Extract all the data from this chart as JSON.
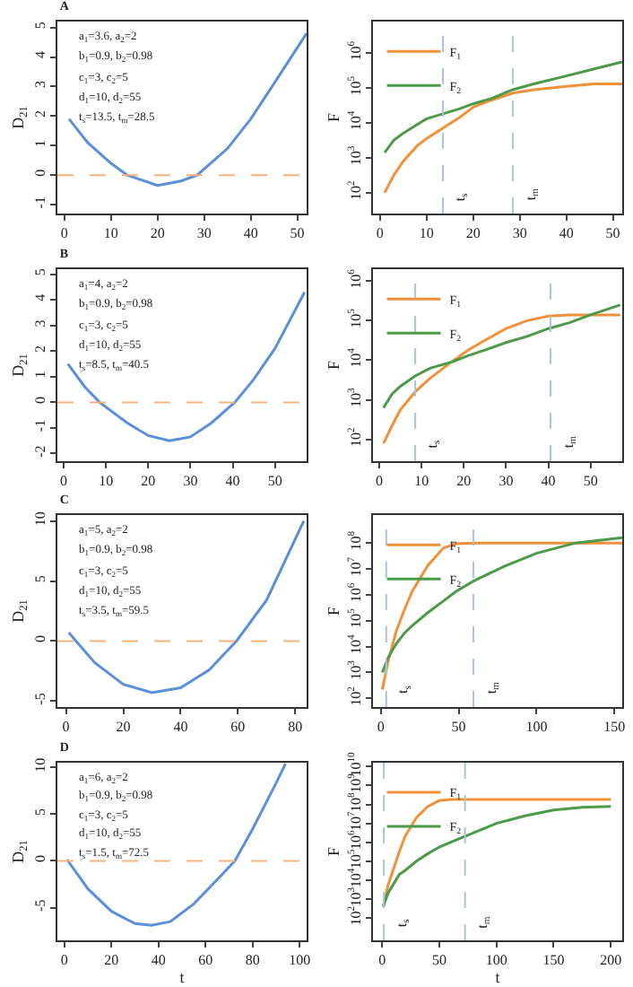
{
  "chart_data": [
    {
      "type": "line",
      "title": "A",
      "ylabel": "D$_{21}$",
      "annotations": [
        "a$_{1}$=3.6, a$_{2}$=2",
        "b$_{1}$=0.9, b$_{2}$=0.98",
        "c$_{1}$=3, c$_{2}$=5",
        "d$_{1}$=10, d$_{2}$=55",
        "t$_{s}$=13.5, t$_{m}$=28.5"
      ],
      "x": [
        1,
        5,
        10,
        13.5,
        20,
        25,
        28.5,
        35,
        40,
        45,
        52
      ],
      "series": [
        {
          "color": "#5b8fd9",
          "values": [
            1.9,
            1.1,
            0.4,
            0,
            -0.35,
            -0.2,
            0,
            0.9,
            1.9,
            3.1,
            4.8
          ]
        }
      ],
      "xlim": [
        -1.5,
        52
      ],
      "xticks": [
        0,
        10,
        20,
        30,
        40,
        50
      ],
      "ylim": [
        -1.3,
        5.2
      ],
      "yticks": [
        -1,
        0,
        1,
        2,
        3,
        4,
        5
      ],
      "ref_lines": [
        {
          "axis": "y",
          "value": 0,
          "color": "#f5b27a",
          "line_style": "dashed"
        }
      ],
      "grid": false,
      "legend": false,
      "marker": "none"
    },
    {
      "type": "line",
      "ylabel": "F",
      "log": "y",
      "legend": "top left",
      "marker": "none",
      "grid": false,
      "x": [
        1,
        3,
        5,
        8,
        10,
        13.5,
        17,
        20,
        24,
        28.5,
        33,
        40,
        46,
        52
      ],
      "series": [
        {
          "name": "F$_{1}$",
          "color": "#f0913a",
          "values": [
            100,
            320,
            790,
            2200,
            3500,
            7100,
            14000,
            28000,
            45000,
            71000,
            89000,
            110000,
            130000,
            130000
          ]
        },
        {
          "name": "F$_{2}$",
          "color": "#4a9a47",
          "values": [
            1400,
            3200,
            5000,
            8900,
            13000,
            18000,
            25000,
            35000,
            50000,
            89000,
            130000,
            220000,
            350000,
            560000
          ]
        }
      ],
      "xlim": [
        -1.5,
        52
      ],
      "xticks": [
        0,
        10,
        20,
        30,
        40,
        50
      ],
      "ylim": [
        25,
        8000000
      ],
      "yticks": [
        {
          "value": 100,
          "label": "10$^{2}$"
        },
        {
          "value": 1000,
          "label": "10$^{3}$"
        },
        {
          "value": 10000,
          "label": "10$^{4}$"
        },
        {
          "value": 100000,
          "label": "10$^{5}$"
        },
        {
          "value": 1000000,
          "label": "10$^{6}$"
        }
      ],
      "ref_lines": [
        {
          "axis": "x",
          "value": 13.5,
          "label": "t$_{s}$",
          "color": "#a9c4d8",
          "line_style": "dashed"
        },
        {
          "axis": "x",
          "value": 28.5,
          "label": "t$_{m}$",
          "color": "#a9c4d8",
          "line_style": "dashed"
        }
      ]
    },
    {
      "type": "line",
      "title": "B",
      "ylabel": "D$_{21}$",
      "annotations": [
        "a$_{1}$=4, a$_{2}$=2",
        "b$_{1}$=0.9, b$_{2}$=0.98",
        "c$_{1}$=3, c$_{2}$=5",
        "d$_{1}$=10, d$_{2}$=55",
        "t$_{s}$=8.5, t$_{m}$=40.5"
      ],
      "x": [
        1,
        5,
        8.5,
        15,
        20,
        25,
        30,
        35,
        40.5,
        45,
        50,
        57
      ],
      "series": [
        {
          "color": "#5b8fd9",
          "values": [
            1.5,
            0.6,
            0,
            -0.8,
            -1.3,
            -1.5,
            -1.35,
            -0.8,
            0,
            0.9,
            2.1,
            4.3
          ]
        }
      ],
      "xlim": [
        -1.5,
        57.5
      ],
      "xticks": [
        0,
        10,
        20,
        30,
        40,
        50
      ],
      "ylim": [
        -2.3,
        5.2
      ],
      "yticks": [
        -2,
        -1,
        0,
        1,
        2,
        3,
        4,
        5
      ],
      "ref_lines": [
        {
          "axis": "y",
          "value": 0,
          "color": "#f5b27a",
          "line_style": "dashed"
        }
      ],
      "grid": false,
      "legend": false,
      "marker": "none"
    },
    {
      "type": "line",
      "ylabel": "F",
      "log": "y",
      "legend": "top left",
      "marker": "none",
      "grid": false,
      "x": [
        1,
        3,
        5,
        8.5,
        12,
        17,
        21,
        25,
        30,
        35,
        40,
        45,
        50,
        57
      ],
      "series": [
        {
          "name": "F$_{1}$",
          "color": "#f0913a",
          "values": [
            79,
            220,
            560,
            1600,
            3500,
            8900,
            18000,
            32000,
            63000,
            100000,
            130000,
            140000,
            140000,
            140000
          ]
        },
        {
          "name": "F$_{2}$",
          "color": "#4a9a47",
          "values": [
            630,
            1400,
            2200,
            4000,
            6300,
            8900,
            13000,
            18000,
            28000,
            40000,
            63000,
            89000,
            140000,
            250000
          ]
        }
      ],
      "xlim": [
        -1.5,
        57.5
      ],
      "xticks": [
        0,
        10,
        20,
        30,
        40,
        50
      ],
      "ylim": [
        28,
        2000000
      ],
      "yticks": [
        {
          "value": 100,
          "label": "10$^{2}$"
        },
        {
          "value": 1000,
          "label": "10$^{3}$"
        },
        {
          "value": 10000,
          "label": "10$^{4}$"
        },
        {
          "value": 100000,
          "label": "10$^{5}$"
        },
        {
          "value": 1000000,
          "label": "10$^{6}$"
        }
      ],
      "ref_lines": [
        {
          "axis": "x",
          "value": 8.5,
          "label": "t$_{s}$",
          "color": "#a9c4d8",
          "line_style": "dashed"
        },
        {
          "axis": "x",
          "value": 40.5,
          "label": "t$_{m}$",
          "color": "#a9c4d8",
          "line_style": "dashed"
        }
      ]
    },
    {
      "type": "line",
      "title": "C",
      "ylabel": "D$_{21}$",
      "annotations": [
        "a$_{1}$=5, a$_{2}$=2",
        "b$_{1}$=0.9, b$_{2}$=0.98",
        "c$_{1}$=3, c$_{2}$=5",
        "d$_{1}$=10, d$_{2}$=55",
        "t$_{s}$=3.5, t$_{m}$=59.5"
      ],
      "x": [
        1,
        3.5,
        10,
        20,
        30,
        40,
        50,
        59.5,
        70,
        83
      ],
      "series": [
        {
          "color": "#5b8fd9",
          "values": [
            0.7,
            0,
            -1.8,
            -3.6,
            -4.3,
            -3.9,
            -2.4,
            0,
            3.4,
            10
          ]
        }
      ],
      "xlim": [
        -3,
        84
      ],
      "xticks": [
        0,
        20,
        40,
        60,
        80
      ],
      "ylim": [
        -5.5,
        10.5
      ],
      "yticks": [
        -5,
        0,
        5,
        10
      ],
      "ref_lines": [
        {
          "axis": "y",
          "value": 0,
          "color": "#f5b27a",
          "line_style": "dashed"
        }
      ],
      "grid": false,
      "legend": false,
      "marker": "none"
    },
    {
      "type": "line",
      "ylabel": "F",
      "log": "y",
      "legend": "top left",
      "marker": "none",
      "grid": false,
      "x": [
        1,
        5,
        10,
        15,
        20,
        30,
        40,
        48,
        60,
        80,
        100,
        125,
        155
      ],
      "series": [
        {
          "name": "F$_{1}$",
          "color": "#f0913a",
          "values": [
            220,
            3200,
            40000,
            250000,
            1300000,
            13000000,
            63000000,
            93000000,
            100000000,
            100000000,
            100000000,
            100000000,
            100000000
          ]
        },
        {
          "name": "F$_{2}$",
          "color": "#4a9a47",
          "values": [
            1000,
            4000,
            13000,
            32000,
            63000,
            200000,
            560000,
            1300000,
            3500000,
            13000000,
            40000000,
            100000000,
            160000000
          ]
        }
      ],
      "xlim": [
        -5,
        155
      ],
      "xticks": [
        0,
        50,
        100,
        150
      ],
      "ylim": [
        46,
        1200000000
      ],
      "yticks": [
        {
          "value": 100,
          "label": "10$^{2}$"
        },
        {
          "value": 1000,
          "label": "10$^{3}$"
        },
        {
          "value": 10000,
          "label": "10$^{4}$"
        },
        {
          "value": 100000,
          "label": "10$^{5}$"
        },
        {
          "value": 1000000,
          "label": "10$^{6}$"
        },
        {
          "value": 10000000,
          "label": "10$^{7}$"
        },
        {
          "value": 100000000,
          "label": "10$^{8}$"
        }
      ],
      "ref_lines": [
        {
          "axis": "x",
          "value": 3.5,
          "label": "t$_{s}$",
          "color": "#a9c4d8",
          "line_style": "dashed"
        },
        {
          "axis": "x",
          "value": 59.5,
          "label": "t$_{m}$",
          "color": "#a9c4d8",
          "line_style": "dashed"
        }
      ]
    },
    {
      "type": "line",
      "title": "D",
      "ylabel": "D$_{21}$",
      "xlabel": "t",
      "annotations": [
        "a$_{1}$=6, a$_{2}$=2",
        "b$_{1}$=0.9, b$_{2}$=0.98",
        "c$_{1}$=3, c$_{2}$=5",
        "d$_{1}$=10, d$_{2}$=55",
        "t$_{s}$=1.5, t$_{m}$=72.5"
      ],
      "x": [
        1,
        1.5,
        10,
        20,
        30,
        37,
        45,
        55,
        65,
        72.5,
        80,
        90,
        94
      ],
      "series": [
        {
          "color": "#5b8fd9",
          "values": [
            0.1,
            0,
            -3,
            -5.4,
            -6.7,
            -6.9,
            -6.5,
            -4.6,
            -2,
            0,
            3.4,
            8.3,
            10.4
          ]
        }
      ],
      "xlim": [
        -3,
        103
      ],
      "xticks": [
        0,
        20,
        40,
        60,
        80,
        100
      ],
      "ylim": [
        -8.5,
        10.5
      ],
      "yticks": [
        -5,
        0,
        5,
        10
      ],
      "ref_lines": [
        {
          "axis": "y",
          "value": 0,
          "color": "#f5b27a",
          "line_style": "dashed"
        }
      ],
      "grid": false,
      "legend": false,
      "marker": "none"
    },
    {
      "type": "line",
      "ylabel": "F",
      "xlabel": "t",
      "log": "y",
      "legend": "top left",
      "marker": "none",
      "grid": false,
      "x": [
        1,
        5,
        10,
        15,
        20,
        30,
        40,
        50,
        60,
        80,
        100,
        125,
        150,
        175,
        200
      ],
      "series": [
        {
          "name": "F$_{1}$",
          "color": "#f0913a",
          "values": [
            400,
            5000,
            40000,
            320000,
            2000000,
            20000000,
            79000000,
            160000000,
            180000000,
            180000000,
            180000000,
            180000000,
            180000000,
            180000000,
            180000000
          ]
        },
        {
          "name": "F$_{2}$",
          "color": "#4a9a47",
          "values": [
            400,
            2000,
            6300,
            20000,
            32000,
            100000,
            250000,
            560000,
            1000000,
            3200000,
            10000000,
            25000000,
            50000000,
            71000000,
            79000000
          ]
        }
      ],
      "xlim": [
        -8,
        210
      ],
      "xticks": [
        0,
        50,
        100,
        150,
        200
      ],
      "ylim": [
        6.6,
        16000000000
      ],
      "yticks": [
        {
          "value": 100,
          "label": "10$^{2}$"
        },
        {
          "value": 1000,
          "label": "10$^{3}$"
        },
        {
          "value": 10000,
          "label": "10$^{4}$"
        },
        {
          "value": 100000,
          "label": "10$^{5}$"
        },
        {
          "value": 1000000,
          "label": "10$^{6}$"
        },
        {
          "value": 10000000,
          "label": "10$^{7}$"
        },
        {
          "value": 100000000,
          "label": "10$^{8}$"
        },
        {
          "value": 1000000000,
          "label": "10$^{9}$"
        },
        {
          "value": 10000000000,
          "label": "10$^{10}$"
        }
      ],
      "ref_lines": [
        {
          "axis": "x",
          "value": 1.5,
          "label": "t$_{s}$",
          "color": "#a9c4d8",
          "line_style": "dashed"
        },
        {
          "axis": "x",
          "value": 72.5,
          "label": "t$_{m}$",
          "color": "#a9c4d8",
          "line_style": "dashed"
        }
      ]
    }
  ]
}
